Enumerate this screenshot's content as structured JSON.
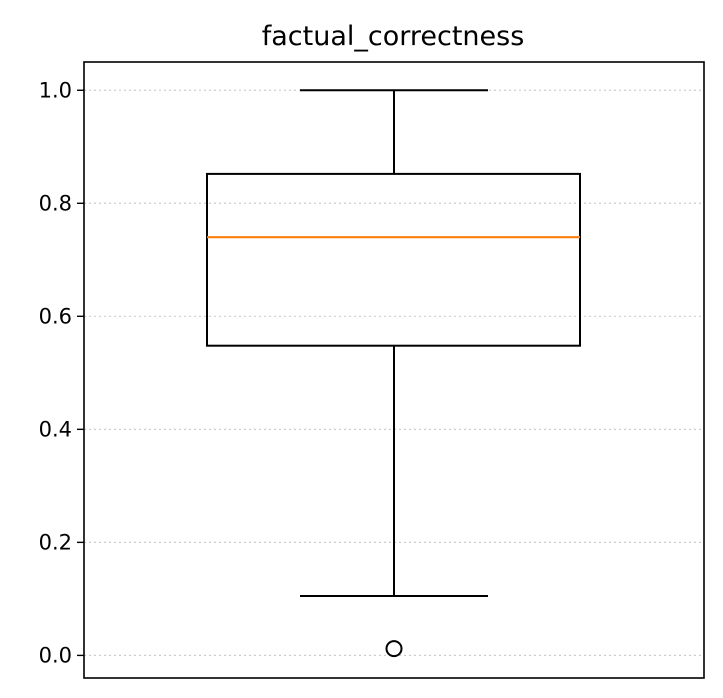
{
  "chart_data": {
    "type": "boxplot",
    "title": "factual_correctness",
    "xlabel": "",
    "ylabel": "",
    "ylim": [
      -0.04,
      1.05
    ],
    "yticks": [
      0.0,
      0.2,
      0.4,
      0.6,
      0.8,
      1.0
    ],
    "ytick_labels": [
      "0.0",
      "0.2",
      "0.4",
      "0.6",
      "0.8",
      "1.0"
    ],
    "grid": "y-dotted",
    "box": {
      "whisker_low": 0.105,
      "q1": 0.548,
      "median": 0.74,
      "q3": 0.852,
      "whisker_high": 1.0,
      "outliers": [
        0.012
      ]
    },
    "colors": {
      "box": "#000000",
      "median": "#ff7f0e",
      "grid": "#cccccc"
    }
  }
}
